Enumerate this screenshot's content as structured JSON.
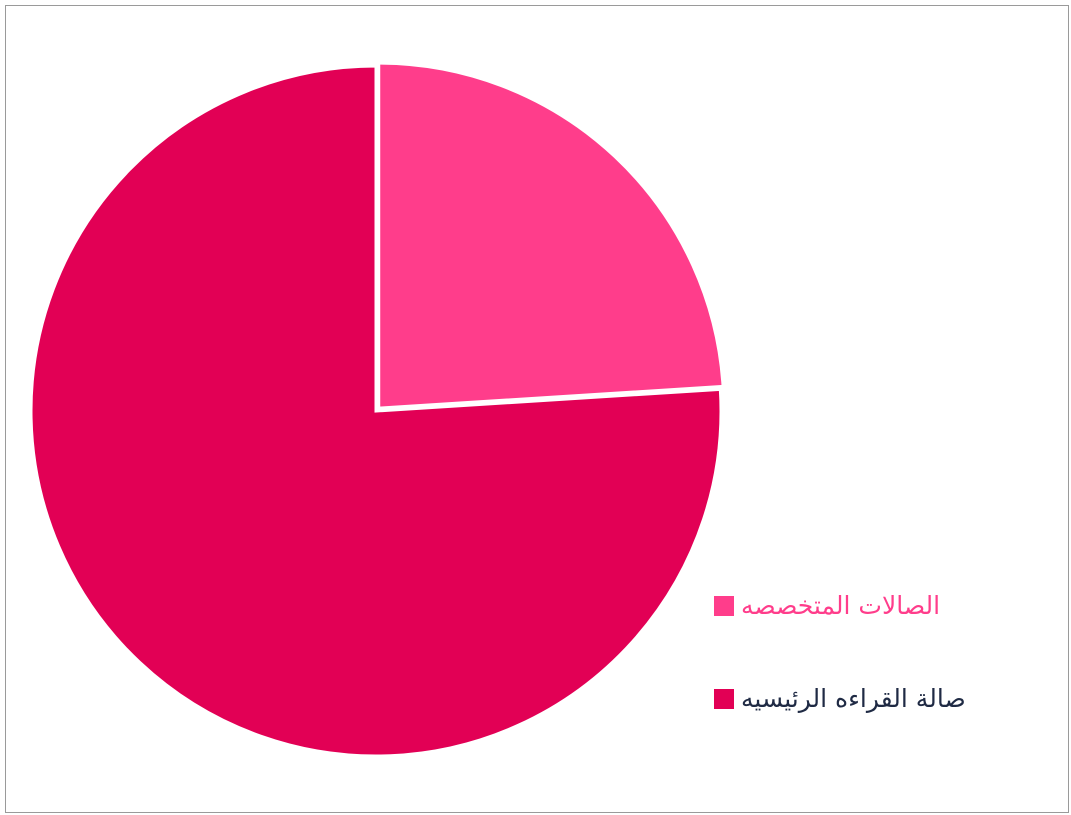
{
  "chart_data": {
    "type": "pie",
    "title": "",
    "categories": [
      "الصالات المتخصصه",
      "صالة القراءه الرئيسيه"
    ],
    "values": [
      24,
      76
    ],
    "colors": [
      "#ff3d8b",
      "#e20055"
    ],
    "start_angle_deg": 0,
    "legend": {
      "position": "right-bottom",
      "label_colors": [
        "#ff3d8b",
        "#1f2a44"
      ]
    }
  }
}
